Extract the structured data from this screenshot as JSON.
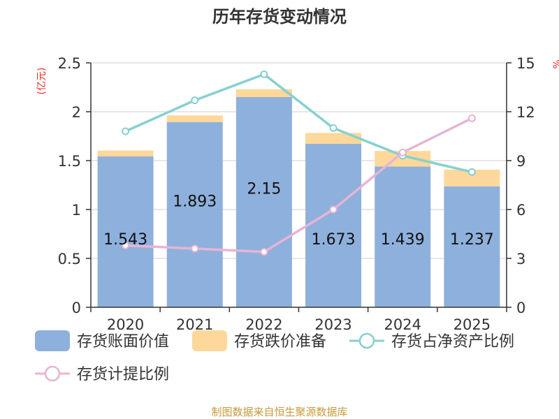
{
  "chart_data": {
    "type": "bar",
    "title": "历年存货变动情况",
    "categories": [
      "2020",
      "2021",
      "2022",
      "2023",
      "2024",
      "2025"
    ],
    "left_axis": {
      "unit_label": "(亿元)",
      "ylim": [
        0,
        2.5
      ],
      "ticks": [
        "0",
        "0.5",
        "1",
        "1.5",
        "2",
        "2.5"
      ]
    },
    "right_axis": {
      "unit_label": "%",
      "ylim": [
        0,
        15
      ],
      "ticks": [
        "0",
        "3",
        "6",
        "9",
        "12",
        "15"
      ]
    },
    "series": [
      {
        "name": "存货账面价值",
        "kind": "bar",
        "axis": "left",
        "color": "#8eb0dc",
        "values": [
          1.543,
          1.893,
          2.15,
          1.673,
          1.439,
          1.237
        ],
        "labels": [
          "1.543",
          "1.893",
          "2.15",
          "1.673",
          "1.439",
          "1.237"
        ]
      },
      {
        "name": "存货跌价准备",
        "kind": "bar",
        "axis": "left",
        "stacked": true,
        "color": "#fdd89a",
        "values": [
          0.06,
          0.07,
          0.08,
          0.11,
          0.16,
          0.17
        ]
      },
      {
        "name": "存货占净资产比例",
        "kind": "line",
        "axis": "right",
        "color": "#86d0d0",
        "values": [
          10.8,
          12.7,
          14.3,
          11.0,
          9.3,
          8.3
        ]
      },
      {
        "name": "存货计提比例",
        "kind": "line",
        "axis": "right",
        "color": "#e6b4d6",
        "values": [
          3.8,
          3.6,
          3.4,
          6.0,
          9.5,
          11.6
        ]
      }
    ],
    "grid": true,
    "legend_position": "bottom"
  },
  "source_text": "制图数据来自恒生聚源数据库"
}
